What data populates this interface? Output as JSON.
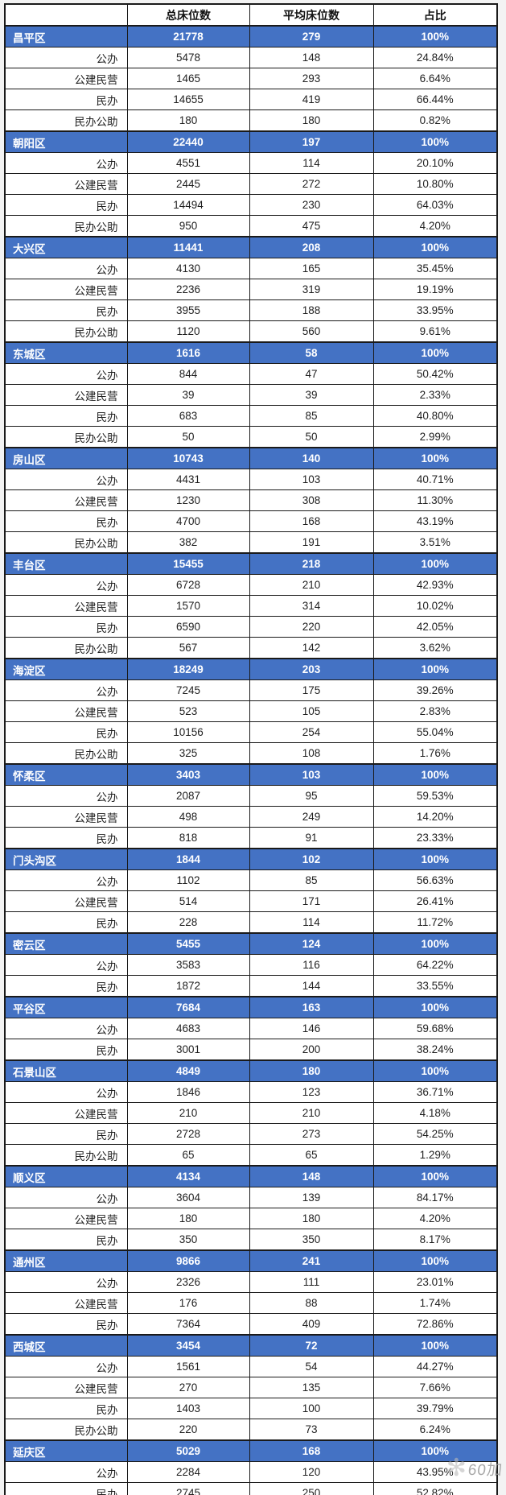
{
  "colors": {
    "district_row_blue": "#4472C4",
    "district_row_text": "#ffffff",
    "body_text": "#1f1f1f",
    "watermark_gray": "#9a9a9a"
  },
  "watermark": {
    "icon": "sparkle-star",
    "text": "60加"
  },
  "chart_data": {
    "type": "table",
    "columns": [
      "",
      "总床位数",
      "平均床位数",
      "占比"
    ],
    "districts": [
      {
        "name": "昌平区",
        "total": "21778",
        "avg": "279",
        "pct": "100%",
        "rows": [
          {
            "type": "公办",
            "total": "5478",
            "avg": "148",
            "pct": "24.84%"
          },
          {
            "type": "公建民营",
            "total": "1465",
            "avg": "293",
            "pct": "6.64%"
          },
          {
            "type": "民办",
            "total": "14655",
            "avg": "419",
            "pct": "66.44%"
          },
          {
            "type": "民办公助",
            "total": "180",
            "avg": "180",
            "pct": "0.82%"
          }
        ]
      },
      {
        "name": "朝阳区",
        "total": "22440",
        "avg": "197",
        "pct": "100%",
        "rows": [
          {
            "type": "公办",
            "total": "4551",
            "avg": "114",
            "pct": "20.10%"
          },
          {
            "type": "公建民营",
            "total": "2445",
            "avg": "272",
            "pct": "10.80%"
          },
          {
            "type": "民办",
            "total": "14494",
            "avg": "230",
            "pct": "64.03%"
          },
          {
            "type": "民办公助",
            "total": "950",
            "avg": "475",
            "pct": "4.20%"
          }
        ]
      },
      {
        "name": "大兴区",
        "total": "11441",
        "avg": "208",
        "pct": "100%",
        "rows": [
          {
            "type": "公办",
            "total": "4130",
            "avg": "165",
            "pct": "35.45%"
          },
          {
            "type": "公建民营",
            "total": "2236",
            "avg": "319",
            "pct": "19.19%"
          },
          {
            "type": "民办",
            "total": "3955",
            "avg": "188",
            "pct": "33.95%"
          },
          {
            "type": "民办公助",
            "total": "1120",
            "avg": "560",
            "pct": "9.61%"
          }
        ]
      },
      {
        "name": "东城区",
        "total": "1616",
        "avg": "58",
        "pct": "100%",
        "rows": [
          {
            "type": "公办",
            "total": "844",
            "avg": "47",
            "pct": "50.42%"
          },
          {
            "type": "公建民营",
            "total": "39",
            "avg": "39",
            "pct": "2.33%"
          },
          {
            "type": "民办",
            "total": "683",
            "avg": "85",
            "pct": "40.80%"
          },
          {
            "type": "民办公助",
            "total": "50",
            "avg": "50",
            "pct": "2.99%"
          }
        ]
      },
      {
        "name": "房山区",
        "total": "10743",
        "avg": "140",
        "pct": "100%",
        "rows": [
          {
            "type": "公办",
            "total": "4431",
            "avg": "103",
            "pct": "40.71%"
          },
          {
            "type": "公建民营",
            "total": "1230",
            "avg": "308",
            "pct": "11.30%"
          },
          {
            "type": "民办",
            "total": "4700",
            "avg": "168",
            "pct": "43.19%"
          },
          {
            "type": "民办公助",
            "total": "382",
            "avg": "191",
            "pct": "3.51%"
          }
        ]
      },
      {
        "name": "丰台区",
        "total": "15455",
        "avg": "218",
        "pct": "100%",
        "rows": [
          {
            "type": "公办",
            "total": "6728",
            "avg": "210",
            "pct": "42.93%"
          },
          {
            "type": "公建民营",
            "total": "1570",
            "avg": "314",
            "pct": "10.02%"
          },
          {
            "type": "民办",
            "total": "6590",
            "avg": "220",
            "pct": "42.05%"
          },
          {
            "type": "民办公助",
            "total": "567",
            "avg": "142",
            "pct": "3.62%"
          }
        ]
      },
      {
        "name": "海淀区",
        "total": "18249",
        "avg": "203",
        "pct": "100%",
        "rows": [
          {
            "type": "公办",
            "total": "7245",
            "avg": "175",
            "pct": "39.26%"
          },
          {
            "type": "公建民营",
            "total": "523",
            "avg": "105",
            "pct": "2.83%"
          },
          {
            "type": "民办",
            "total": "10156",
            "avg": "254",
            "pct": "55.04%"
          },
          {
            "type": "民办公助",
            "total": "325",
            "avg": "108",
            "pct": "1.76%"
          }
        ]
      },
      {
        "name": "怀柔区",
        "total": "3403",
        "avg": "103",
        "pct": "100%",
        "rows": [
          {
            "type": "公办",
            "total": "2087",
            "avg": "95",
            "pct": "59.53%"
          },
          {
            "type": "公建民营",
            "total": "498",
            "avg": "249",
            "pct": "14.20%"
          },
          {
            "type": "民办",
            "total": "818",
            "avg": "91",
            "pct": "23.33%"
          }
        ]
      },
      {
        "name": "门头沟区",
        "total": "1844",
        "avg": "102",
        "pct": "100%",
        "rows": [
          {
            "type": "公办",
            "total": "1102",
            "avg": "85",
            "pct": "56.63%"
          },
          {
            "type": "公建民营",
            "total": "514",
            "avg": "171",
            "pct": "26.41%"
          },
          {
            "type": "民办",
            "total": "228",
            "avg": "114",
            "pct": "11.72%"
          }
        ]
      },
      {
        "name": "密云区",
        "total": "5455",
        "avg": "124",
        "pct": "100%",
        "rows": [
          {
            "type": "公办",
            "total": "3583",
            "avg": "116",
            "pct": "64.22%"
          },
          {
            "type": "民办",
            "total": "1872",
            "avg": "144",
            "pct": "33.55%"
          }
        ]
      },
      {
        "name": "平谷区",
        "total": "7684",
        "avg": "163",
        "pct": "100%",
        "rows": [
          {
            "type": "公办",
            "total": "4683",
            "avg": "146",
            "pct": "59.68%"
          },
          {
            "type": "民办",
            "total": "3001",
            "avg": "200",
            "pct": "38.24%"
          }
        ]
      },
      {
        "name": "石景山区",
        "total": "4849",
        "avg": "180",
        "pct": "100%",
        "rows": [
          {
            "type": "公办",
            "total": "1846",
            "avg": "123",
            "pct": "36.71%"
          },
          {
            "type": "公建民营",
            "total": "210",
            "avg": "210",
            "pct": "4.18%"
          },
          {
            "type": "民办",
            "total": "2728",
            "avg": "273",
            "pct": "54.25%"
          },
          {
            "type": "民办公助",
            "total": "65",
            "avg": "65",
            "pct": "1.29%"
          }
        ]
      },
      {
        "name": "顺义区",
        "total": "4134",
        "avg": "148",
        "pct": "100%",
        "rows": [
          {
            "type": "公办",
            "total": "3604",
            "avg": "139",
            "pct": "84.17%"
          },
          {
            "type": "公建民营",
            "total": "180",
            "avg": "180",
            "pct": "4.20%"
          },
          {
            "type": "民办",
            "total": "350",
            "avg": "350",
            "pct": "8.17%"
          }
        ]
      },
      {
        "name": "通州区",
        "total": "9866",
        "avg": "241",
        "pct": "100%",
        "rows": [
          {
            "type": "公办",
            "total": "2326",
            "avg": "111",
            "pct": "23.01%"
          },
          {
            "type": "公建民营",
            "total": "176",
            "avg": "88",
            "pct": "1.74%"
          },
          {
            "type": "民办",
            "total": "7364",
            "avg": "409",
            "pct": "72.86%"
          }
        ]
      },
      {
        "name": "西城区",
        "total": "3454",
        "avg": "72",
        "pct": "100%",
        "rows": [
          {
            "type": "公办",
            "total": "1561",
            "avg": "54",
            "pct": "44.27%"
          },
          {
            "type": "公建民营",
            "total": "270",
            "avg": "135",
            "pct": "7.66%"
          },
          {
            "type": "民办",
            "total": "1403",
            "avg": "100",
            "pct": "39.79%"
          },
          {
            "type": "民办公助",
            "total": "220",
            "avg": "73",
            "pct": "6.24%"
          }
        ]
      },
      {
        "name": "延庆区",
        "total": "5029",
        "avg": "168",
        "pct": "100%",
        "rows": [
          {
            "type": "公办",
            "total": "2284",
            "avg": "120",
            "pct": "43.95%"
          },
          {
            "type": "民办",
            "total": "2745",
            "avg": "250",
            "pct": "52.82%"
          }
        ]
      }
    ]
  }
}
